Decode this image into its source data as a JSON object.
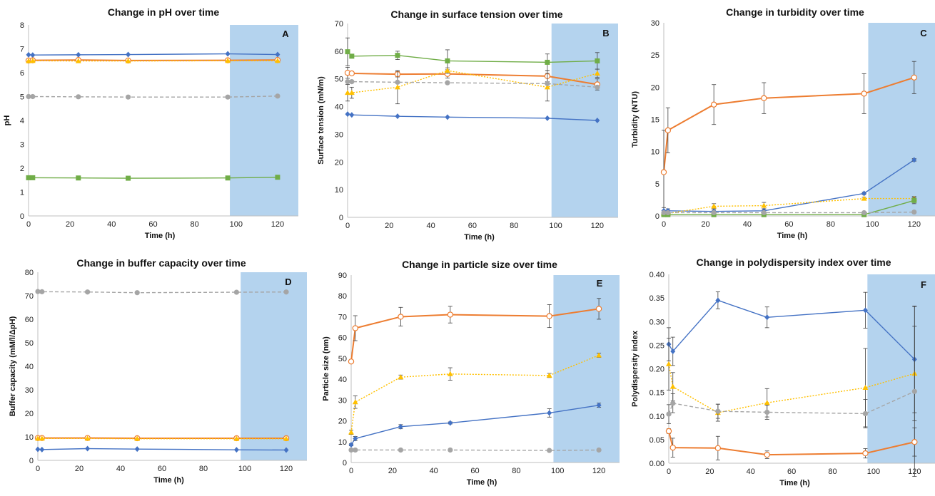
{
  "colors": {
    "blue": "#4472c4",
    "orange": "#ed7d31",
    "green": "#70ad47",
    "gray": "#a5a5a5",
    "yellow": "#ffc000",
    "shade": "#b4d3ee",
    "error_bar": "#404040"
  },
  "chart_data": [
    {
      "panel": "A",
      "type": "line",
      "title": "Change in pH over time",
      "xlabel": "Time (h)",
      "ylabel": "pH",
      "xlim": [
        0,
        130
      ],
      "ylim": [
        0,
        8
      ],
      "xticks": [
        0,
        20,
        40,
        60,
        80,
        100,
        120
      ],
      "yticks": [
        0,
        1,
        2,
        3,
        4,
        5,
        6,
        7,
        8
      ],
      "shaded_region": [
        97,
        130
      ],
      "grid": false,
      "series": [
        {
          "color": "blue",
          "marker": "diamond",
          "dash": "solid",
          "x": [
            0,
            2,
            24,
            48,
            96,
            120
          ],
          "y": [
            6.75,
            6.74,
            6.75,
            6.76,
            6.79,
            6.76
          ],
          "err": []
        },
        {
          "color": "orange",
          "marker": "open-circle",
          "dash": "solid",
          "x": [
            0,
            2,
            24,
            48,
            96,
            120
          ],
          "y": [
            6.51,
            6.52,
            6.53,
            6.51,
            6.52,
            6.53
          ],
          "err": []
        },
        {
          "color": "yellow",
          "marker": "triangle",
          "dash": "dotted",
          "x": [
            0,
            2,
            24,
            48,
            96,
            120
          ],
          "y": [
            6.49,
            6.5,
            6.49,
            6.49,
            6.5,
            6.5
          ],
          "err": []
        },
        {
          "color": "gray",
          "marker": "circle",
          "dash": "dashed",
          "x": [
            0,
            2,
            24,
            48,
            96,
            120
          ],
          "y": [
            5.0,
            5.0,
            4.99,
            4.98,
            4.98,
            5.02
          ],
          "err": []
        },
        {
          "color": "green",
          "marker": "square",
          "dash": "solid",
          "x": [
            0,
            2,
            24,
            48,
            96,
            120
          ],
          "y": [
            1.6,
            1.6,
            1.59,
            1.58,
            1.59,
            1.62
          ],
          "err": []
        }
      ]
    },
    {
      "panel": "B",
      "type": "line",
      "title": "Change in surface tension over time",
      "xlabel": "Time (h)",
      "ylabel": "Surface tension (mN/m)",
      "xlim": [
        0,
        130
      ],
      "ylim": [
        0,
        70
      ],
      "xticks": [
        0,
        20,
        40,
        60,
        80,
        100,
        120
      ],
      "yticks": [
        0,
        10,
        20,
        30,
        40,
        50,
        60,
        70
      ],
      "shaded_region": [
        98,
        130
      ],
      "grid": false,
      "series": [
        {
          "color": "green",
          "marker": "square",
          "dash": "solid",
          "x": [
            0,
            2,
            24,
            48,
            96,
            120
          ],
          "y": [
            59.8,
            58.2,
            58.5,
            56.5,
            56.0,
            56.5
          ],
          "err": [
            5,
            0.5,
            1.5,
            4,
            3,
            3
          ]
        },
        {
          "color": "orange",
          "marker": "open-circle",
          "dash": "solid",
          "x": [
            0,
            2,
            24,
            48,
            96,
            120
          ],
          "y": [
            52.2,
            52.0,
            51.7,
            51.8,
            51.0,
            48.0
          ],
          "err": [
            2,
            0.5,
            1,
            1.5,
            2,
            2
          ]
        },
        {
          "color": "yellow",
          "marker": "triangle",
          "dash": "dotted",
          "x": [
            0,
            2,
            24,
            48,
            96,
            120
          ],
          "y": [
            45.0,
            45.0,
            47.0,
            53.0,
            47.0,
            52.0
          ],
          "err": [
            3,
            2,
            6,
            1,
            5,
            1.5
          ]
        },
        {
          "color": "gray",
          "marker": "circle",
          "dash": "dashed",
          "x": [
            0,
            2,
            24,
            48,
            96,
            120
          ],
          "y": [
            49.0,
            49.0,
            48.8,
            48.6,
            48.3,
            47.0
          ],
          "err": []
        },
        {
          "color": "blue",
          "marker": "diamond",
          "dash": "solid",
          "x": [
            0,
            2,
            24,
            48,
            96,
            120
          ],
          "y": [
            37.3,
            37.0,
            36.5,
            36.2,
            35.8,
            35.0
          ],
          "err": []
        }
      ]
    },
    {
      "panel": "C",
      "type": "line",
      "title": "Change in turbidity over time",
      "xlabel": "Time (h)",
      "ylabel": "Turbidity (NTU)",
      "xlim": [
        0,
        130
      ],
      "ylim": [
        0,
        30
      ],
      "xticks": [
        0,
        20,
        40,
        60,
        80,
        100,
        120
      ],
      "yticks": [
        0,
        5,
        10,
        15,
        20,
        25,
        30
      ],
      "shaded_region": [
        98,
        130
      ],
      "grid": false,
      "series": [
        {
          "color": "orange",
          "marker": "open-circle",
          "dash": "solid",
          "x": [
            0,
            2,
            24,
            48,
            96,
            120
          ],
          "y": [
            6.8,
            13.3,
            17.3,
            18.3,
            19.0,
            21.5
          ],
          "err": [
            6.5,
            3.5,
            3.1,
            2.4,
            3.1,
            2.5
          ]
        },
        {
          "color": "blue",
          "marker": "diamond",
          "dash": "solid",
          "x": [
            0,
            2,
            24,
            48,
            96,
            120
          ],
          "y": [
            0.8,
            0.8,
            0.7,
            0.8,
            3.5,
            8.7
          ],
          "err": [
            0.5,
            0.3,
            0.2,
            0.3,
            0.2,
            0.2
          ]
        },
        {
          "color": "yellow",
          "marker": "triangle",
          "dash": "dotted",
          "x": [
            0,
            2,
            24,
            48,
            96,
            120
          ],
          "y": [
            0.4,
            0.4,
            1.5,
            1.6,
            2.7,
            2.7
          ],
          "err": [
            0.2,
            0.2,
            0.4,
            0.5,
            0.2,
            0.3
          ]
        },
        {
          "color": "green",
          "marker": "square",
          "dash": "solid",
          "x": [
            0,
            2,
            24,
            48,
            96,
            120
          ],
          "y": [
            0.2,
            0.2,
            0.2,
            0.2,
            0.2,
            2.4
          ],
          "err": [
            0.1,
            0.1,
            0.1,
            0.1,
            0.1,
            0.5
          ]
        },
        {
          "color": "gray",
          "marker": "circle",
          "dash": "dashed",
          "x": [
            0,
            2,
            24,
            48,
            96,
            120
          ],
          "y": [
            0.5,
            0.5,
            0.5,
            0.5,
            0.5,
            0.6
          ],
          "err": []
        }
      ]
    },
    {
      "panel": "D",
      "type": "line",
      "title": "Change in buffer capacity over time",
      "xlabel": "Time (h)",
      "ylabel": "Buffer capacity (mM/l/ΔpH)",
      "xlim": [
        0,
        130
      ],
      "ylim": [
        0,
        80
      ],
      "xticks": [
        0,
        20,
        40,
        60,
        80,
        100,
        120
      ],
      "yticks": [
        0,
        10,
        20,
        30,
        40,
        50,
        60,
        70,
        80
      ],
      "shaded_region": [
        98,
        130
      ],
      "grid": false,
      "series": [
        {
          "color": "gray",
          "marker": "circle",
          "dash": "dashed",
          "x": [
            0,
            2,
            24,
            48,
            96,
            120
          ],
          "y": [
            71.8,
            71.7,
            71.6,
            71.3,
            71.5,
            71.6
          ],
          "err": []
        },
        {
          "color": "orange",
          "marker": "open-circle",
          "dash": "solid",
          "x": [
            0,
            2,
            24,
            48,
            96,
            120
          ],
          "y": [
            9.5,
            9.5,
            9.5,
            9.4,
            9.4,
            9.4
          ],
          "err": []
        },
        {
          "color": "yellow",
          "marker": "triangle",
          "dash": "dotted",
          "x": [
            0,
            2,
            24,
            48,
            96,
            120
          ],
          "y": [
            9.3,
            9.3,
            9.3,
            9.2,
            9.2,
            9.2
          ],
          "err": []
        },
        {
          "color": "blue",
          "marker": "diamond",
          "dash": "solid",
          "x": [
            0,
            2,
            24,
            48,
            96,
            120
          ],
          "y": [
            4.7,
            4.6,
            5.0,
            4.8,
            4.5,
            4.4
          ],
          "err": []
        }
      ]
    },
    {
      "panel": "E",
      "type": "line",
      "title": "Change in particle size over time",
      "xlabel": "Time (h)",
      "ylabel": "Particle size (nm)",
      "xlim": [
        0,
        130
      ],
      "ylim": [
        0,
        90
      ],
      "xticks": [
        0,
        20,
        40,
        60,
        80,
        100,
        120
      ],
      "yticks": [
        0,
        10,
        20,
        30,
        40,
        50,
        60,
        70,
        80,
        90
      ],
      "shaded_region": [
        98,
        130
      ],
      "grid": false,
      "series": [
        {
          "color": "orange",
          "marker": "open-circle",
          "dash": "solid",
          "x": [
            0,
            2,
            24,
            48,
            96,
            120
          ],
          "y": [
            48.5,
            64.5,
            70.0,
            71.0,
            70.3,
            73.8
          ],
          "err": [
            0,
            6,
            4.5,
            4,
            5.5,
            5
          ]
        },
        {
          "color": "yellow",
          "marker": "triangle",
          "dash": "dotted",
          "x": [
            0,
            2,
            24,
            48,
            96,
            120
          ],
          "y": [
            14.5,
            29.0,
            41.0,
            42.5,
            41.8,
            51.5
          ],
          "err": [
            1,
            3,
            1,
            3,
            1,
            1
          ]
        },
        {
          "color": "blue",
          "marker": "diamond",
          "dash": "solid",
          "x": [
            0,
            2,
            24,
            48,
            96,
            120
          ],
          "y": [
            8.5,
            11.5,
            17.2,
            19.0,
            23.8,
            27.5
          ],
          "err": [
            0.5,
            1,
            1,
            0.5,
            2,
            1
          ]
        },
        {
          "color": "gray",
          "marker": "circle",
          "dash": "dashed",
          "x": [
            0,
            2,
            24,
            48,
            96,
            120
          ],
          "y": [
            6.0,
            6.0,
            6.0,
            6.0,
            5.8,
            6.0
          ],
          "err": []
        }
      ]
    },
    {
      "panel": "F",
      "type": "line",
      "title": "Change in polydispersity index over time",
      "xlabel": "Time (h)",
      "ylabel": "Polydispersity index",
      "xlim": [
        0,
        130
      ],
      "ylim": [
        0,
        0.4
      ],
      "xticks": [
        0,
        20,
        40,
        60,
        80,
        100,
        120
      ],
      "yticks": [
        "0.00",
        "0.05",
        "0.10",
        "0.15",
        "0.20",
        "0.25",
        "0.30",
        "0.35",
        "0.40"
      ],
      "shaded_region": [
        97,
        130
      ],
      "grid": false,
      "series": [
        {
          "color": "blue",
          "marker": "diamond",
          "dash": "solid",
          "x": [
            0,
            2,
            24,
            48,
            96,
            120
          ],
          "y": [
            0.252,
            0.237,
            0.345,
            0.309,
            0.324,
            0.22
          ],
          "err": [
            0.035,
            0.03,
            0.018,
            0.022,
            0.038,
            0.113
          ]
        },
        {
          "color": "yellow",
          "marker": "triangle",
          "dash": "dotted",
          "x": [
            0,
            2,
            24,
            48,
            96,
            120
          ],
          "y": [
            0.21,
            0.162,
            0.107,
            0.128,
            0.16,
            0.19
          ],
          "err": [
            0.055,
            0.03,
            0.018,
            0.03,
            0.083,
            0.1
          ]
        },
        {
          "color": "gray",
          "marker": "circle",
          "dash": "dashed",
          "x": [
            0,
            2,
            24,
            48,
            96,
            120
          ],
          "y": [
            0.104,
            0.127,
            0.11,
            0.108,
            0.105,
            0.152
          ],
          "err": [
            0.02,
            0.02,
            0.015,
            0.015,
            0.03,
            0.18
          ]
        },
        {
          "color": "orange",
          "marker": "open-circle",
          "dash": "solid",
          "x": [
            0,
            2,
            24,
            48,
            96,
            120
          ],
          "y": [
            0.068,
            0.033,
            0.032,
            0.018,
            0.021,
            0.045
          ],
          "err": [
            0.005,
            0.02,
            0.025,
            0.008,
            0.01,
            0.03
          ]
        }
      ]
    }
  ]
}
